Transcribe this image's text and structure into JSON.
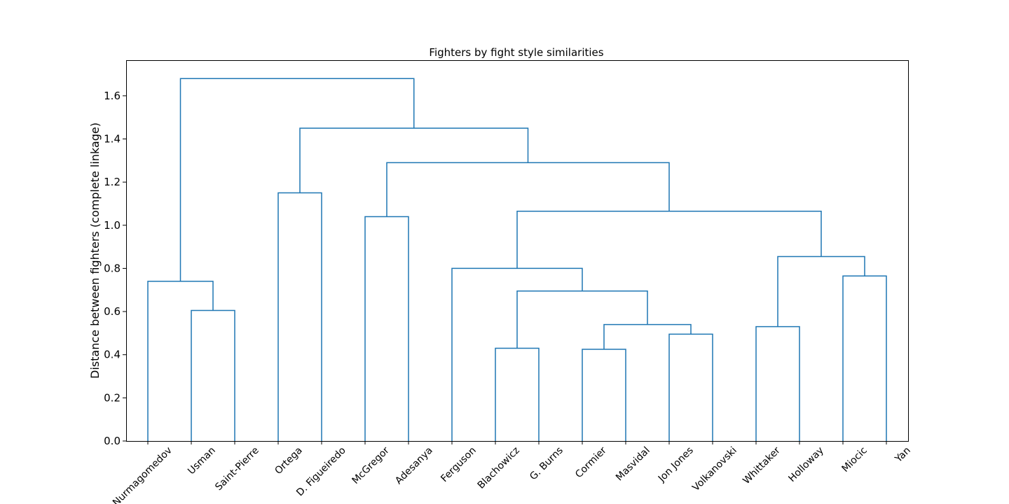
{
  "chart_data": {
    "type": "dendrogram",
    "title": "Fighters by fight style similarities",
    "xlabel": "",
    "ylabel": "Distance between fighters (complete linkage)",
    "ylim": [
      0,
      1.765
    ],
    "yticks": [
      "0.0",
      "0.2",
      "0.4",
      "0.6",
      "0.8",
      "1.0",
      "1.2",
      "1.4",
      "1.6"
    ],
    "leaves": [
      "Nurmagomedov",
      "Usman",
      "Saint-Pierre",
      "Ortega",
      "D. Figueiredo",
      "McGregor",
      "Adesanya",
      "Ferguson",
      "Blachowicz",
      "G. Burns",
      "Cormier",
      "Masvidal",
      "Jon Jones",
      "Volkanovski",
      "Whittaker",
      "Holloway",
      "Miocic",
      "Yan"
    ],
    "link_color": "#1f77b4",
    "merges": [
      {
        "a": "Usman",
        "b": "Saint-Pierre",
        "height": 0.605
      },
      {
        "a": "Nurmagomedov",
        "b": "Usman+Saint-Pierre",
        "height": 0.74
      },
      {
        "a": "Ortega",
        "b": "D. Figueiredo",
        "height": 1.15
      },
      {
        "a": "McGregor",
        "b": "Adesanya",
        "height": 1.04
      },
      {
        "a": "Blachowicz",
        "b": "G. Burns",
        "height": 0.43
      },
      {
        "a": "Cormier",
        "b": "Masvidal",
        "height": 0.425
      },
      {
        "a": "Jon Jones",
        "b": "Volkanovski",
        "height": 0.495
      },
      {
        "a": "Cormier+Masvidal",
        "b": "Jon Jones+Volkanovski",
        "height": 0.54
      },
      {
        "a": "Blachowicz+G. Burns",
        "b": "Cormier..Volkanovski",
        "height": 0.695
      },
      {
        "a": "Ferguson",
        "b": "Blachowicz..Volkanovski",
        "height": 0.8
      },
      {
        "a": "Whittaker",
        "b": "Holloway",
        "height": 0.53
      },
      {
        "a": "Miocic",
        "b": "Yan",
        "height": 0.765
      },
      {
        "a": "Whittaker+Holloway",
        "b": "Miocic+Yan",
        "height": 0.855
      },
      {
        "a": "Ferguson..Volkanovski",
        "b": "Whittaker..Yan",
        "height": 1.065
      },
      {
        "a": "McGregor+Adesanya",
        "b": "Ferguson..Yan",
        "height": 1.29
      },
      {
        "a": "Ortega+D. Figueiredo",
        "b": "McGregor..Yan",
        "height": 1.45
      },
      {
        "a": "Nurmagomedov..Saint-Pierre",
        "b": "Ortega..Yan",
        "height": 1.68
      }
    ]
  }
}
